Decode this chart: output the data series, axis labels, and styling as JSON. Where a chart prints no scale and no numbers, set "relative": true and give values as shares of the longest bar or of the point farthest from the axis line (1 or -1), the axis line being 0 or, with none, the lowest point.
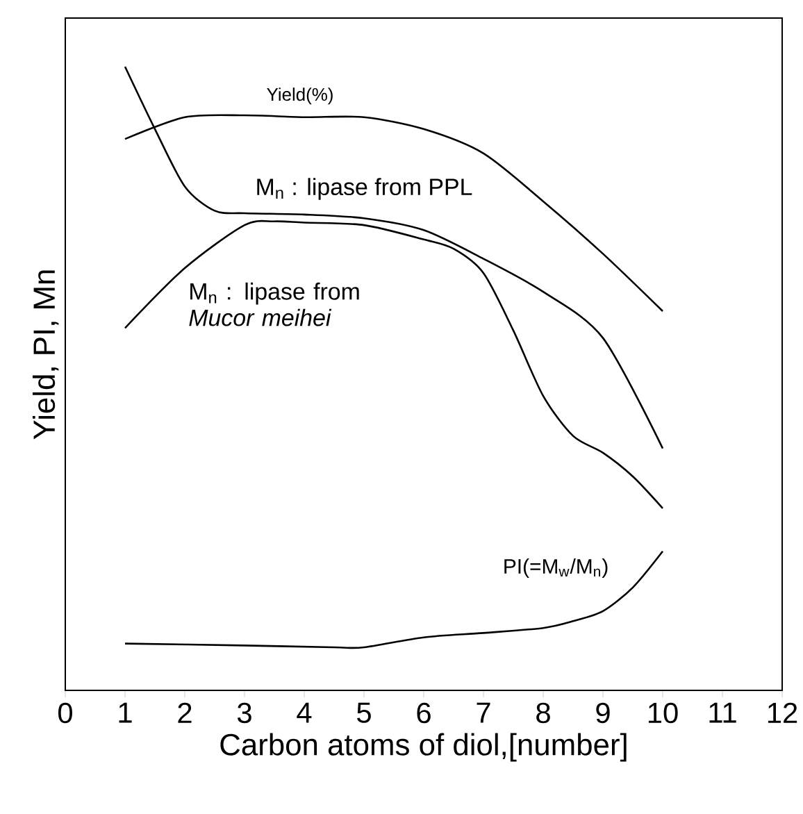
{
  "chart_data": {
    "type": "line",
    "relative": true,
    "xlabel": "Carbon atoms of diol,[number]",
    "ylabel": "Yield, PI, Mn",
    "xlim": [
      0,
      12
    ],
    "xticks": [
      0,
      1,
      2,
      3,
      4,
      5,
      6,
      7,
      8,
      9,
      10,
      11,
      12
    ],
    "tick_labels": "x",
    "line_style": "solid",
    "series": [
      {
        "name": "Yield(%)",
        "color": "#000000",
        "x": [
          1,
          2,
          3,
          4,
          5,
          6,
          7,
          8,
          9,
          10
        ],
        "values": [
          0.884,
          0.919,
          0.922,
          0.919,
          0.919,
          0.9,
          0.861,
          0.784,
          0.7,
          0.608
        ]
      },
      {
        "name": "M$_{n}$ : lipase from PPL",
        "color": "#000000",
        "x": [
          1,
          1.5,
          2,
          2.5,
          3,
          4,
          5,
          6,
          7,
          8,
          9,
          10
        ],
        "values": [
          1.0,
          0.9,
          0.808,
          0.769,
          0.765,
          0.763,
          0.757,
          0.738,
          0.692,
          0.639,
          0.565,
          0.388
        ]
      },
      {
        "name": "M$_{n}$ : lipase from *Mucor meihei*",
        "color": "#000000",
        "x": [
          1,
          2,
          3,
          3.5,
          4,
          5,
          6,
          6.5,
          7,
          7.5,
          8,
          8.5,
          9,
          9.5,
          10
        ],
        "values": [
          0.581,
          0.677,
          0.746,
          0.752,
          0.75,
          0.746,
          0.723,
          0.708,
          0.669,
          0.577,
          0.472,
          0.408,
          0.381,
          0.343,
          0.292
        ]
      },
      {
        "name": "PI(=M$_{w}$/M$_{n}$)",
        "color": "#000000",
        "x": [
          1,
          3,
          4.5,
          5,
          6,
          7,
          8,
          8.5,
          9,
          9.5,
          10
        ],
        "values": [
          0.075,
          0.072,
          0.069,
          0.069,
          0.085,
          0.092,
          0.1,
          0.111,
          0.127,
          0.165,
          0.223
        ]
      }
    ]
  }
}
